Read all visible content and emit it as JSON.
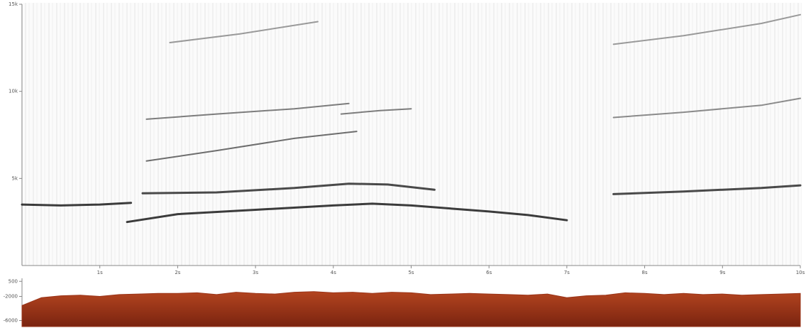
{
  "chart_data": [
    {
      "type": "spectrogram",
      "xlim": [
        0,
        10
      ],
      "ylim": [
        0,
        15000
      ],
      "xticks": [
        {
          "value": 1,
          "label": "1s"
        },
        {
          "value": 2,
          "label": "2s"
        },
        {
          "value": 3,
          "label": "3s"
        },
        {
          "value": 4,
          "label": "4s"
        },
        {
          "value": 5,
          "label": "5s"
        },
        {
          "value": 6,
          "label": "6s"
        },
        {
          "value": 7,
          "label": "7s"
        },
        {
          "value": 8,
          "label": "8s"
        },
        {
          "value": 9,
          "label": "9s"
        },
        {
          "value": 10,
          "label": "10s"
        }
      ],
      "yticks": [
        {
          "value": 5000,
          "label": "5k"
        },
        {
          "value": 10000,
          "label": "10k"
        },
        {
          "value": 15000,
          "label": "15k"
        }
      ],
      "series": [
        {
          "color": "#1a1a1a",
          "x": [
            0,
            0.5,
            1,
            1.4
          ],
          "values": [
            3500,
            3450,
            3500,
            3600
          ]
        },
        {
          "color": "#1a1a1a",
          "x": [
            1.35,
            2,
            3,
            4,
            4.5,
            5,
            6,
            6.5,
            7
          ],
          "values": [
            2500,
            2950,
            3200,
            3450,
            3550,
            3450,
            3100,
            2900,
            2600
          ]
        },
        {
          "color": "#2a2a2a",
          "x": [
            1.55,
            2.5,
            3.5,
            4.2,
            4.7,
            5.3
          ],
          "values": [
            4150,
            4200,
            4450,
            4700,
            4650,
            4350
          ]
        },
        {
          "color": "#2a2a2a",
          "x": [
            7.6,
            8.5,
            9.5,
            10
          ],
          "values": [
            4100,
            4250,
            4450,
            4600
          ]
        },
        {
          "color": "#555555",
          "x": [
            1.6,
            2.5,
            3.5,
            4.3
          ],
          "values": [
            6000,
            6600,
            7300,
            7700
          ]
        },
        {
          "color": "#666666",
          "x": [
            1.6,
            2.5,
            3.5,
            4.2
          ],
          "values": [
            8400,
            8700,
            9000,
            9300
          ]
        },
        {
          "color": "#666666",
          "x": [
            4.1,
            4.6,
            5
          ],
          "values": [
            8700,
            8900,
            9000
          ]
        },
        {
          "color": "#777777",
          "x": [
            7.6,
            8.5,
            9.5,
            10
          ],
          "values": [
            8500,
            8800,
            9200,
            9600
          ]
        },
        {
          "color": "#888888",
          "x": [
            1.9,
            2.8,
            3.8
          ],
          "values": [
            12800,
            13300,
            14000
          ]
        },
        {
          "color": "#888888",
          "x": [
            7.6,
            8.5,
            9.5,
            10
          ],
          "values": [
            12700,
            13200,
            13900,
            14400
          ]
        }
      ]
    },
    {
      "type": "area",
      "xlim": [
        0,
        10
      ],
      "ylim": [
        -7000,
        1000
      ],
      "yticks": [
        500,
        -2000,
        -6000
      ],
      "color": "#9a3419",
      "x": [
        0,
        0.25,
        0.5,
        0.75,
        1,
        1.25,
        1.5,
        1.75,
        2,
        2.25,
        2.5,
        2.75,
        3,
        3.25,
        3.5,
        3.75,
        4,
        4.25,
        4.5,
        4.75,
        5,
        5.25,
        5.5,
        5.75,
        6,
        6.25,
        6.5,
        6.75,
        7,
        7.25,
        7.5,
        7.75,
        8,
        8.25,
        8.5,
        8.75,
        9,
        9.25,
        9.5,
        9.75,
        10
      ],
      "values": [
        -3500,
        -2200,
        -1900,
        -1800,
        -2000,
        -1700,
        -1600,
        -1500,
        -1500,
        -1400,
        -1700,
        -1300,
        -1500,
        -1600,
        -1300,
        -1200,
        -1400,
        -1300,
        -1500,
        -1300,
        -1400,
        -1700,
        -1600,
        -1500,
        -1600,
        -1700,
        -1800,
        -1600,
        -2200,
        -1900,
        -1800,
        -1400,
        -1500,
        -1700,
        -1500,
        -1700,
        -1600,
        -1800,
        -1700,
        -1600,
        -1500
      ]
    }
  ]
}
